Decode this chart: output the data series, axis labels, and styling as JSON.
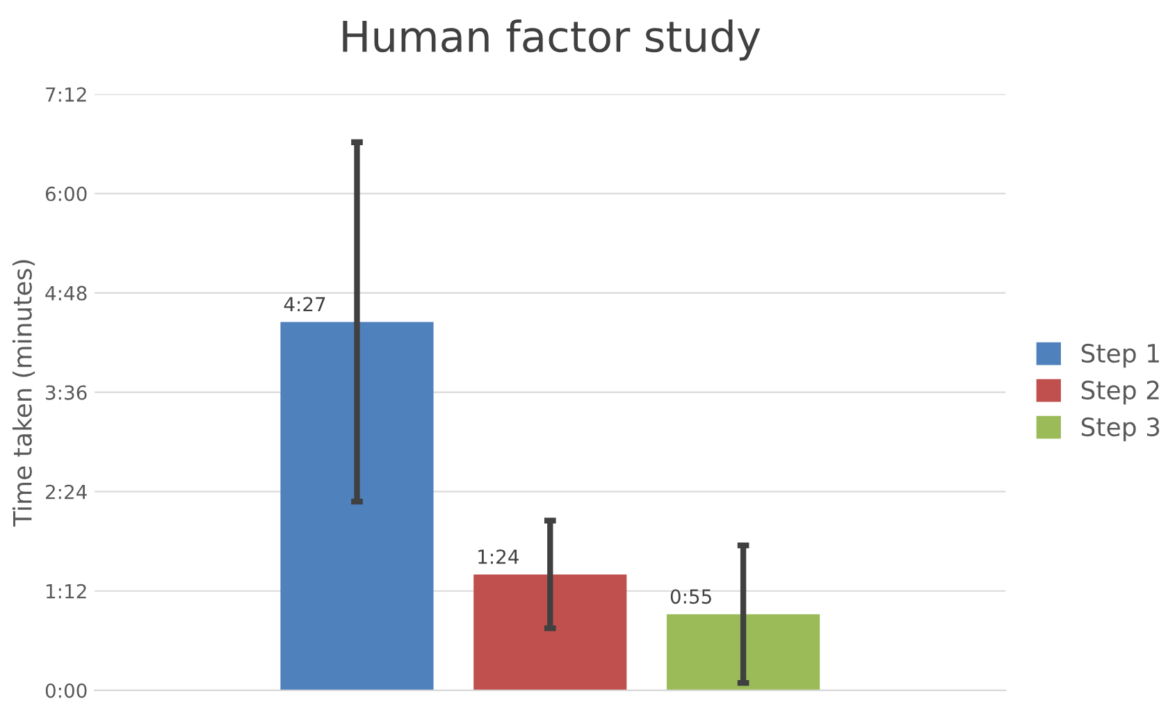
{
  "chart_data": {
    "type": "bar",
    "title": "Human factor study",
    "ylabel": "Time taken (minutes)",
    "categories": [
      null
    ],
    "series": [
      {
        "name": "Step 1",
        "color": "#4f81bd",
        "values": [
          4.45
        ],
        "errors": [
          2.17
        ],
        "value_labels": [
          "4:27"
        ]
      },
      {
        "name": "Step 2",
        "color": "#c0504d",
        "values": [
          1.4
        ],
        "errors": [
          0.65
        ],
        "value_labels": [
          "1:24"
        ]
      },
      {
        "name": "Step 3",
        "color": "#9bbb59",
        "values": [
          0.92
        ],
        "errors": [
          0.83
        ],
        "value_labels": [
          "0:55"
        ]
      }
    ],
    "ylim": [
      0,
      7.2
    ],
    "yticks": [
      {
        "value": 0,
        "label": "0:00"
      },
      {
        "value": 1.2,
        "label": "1:12"
      },
      {
        "value": 2.4,
        "label": "2:24"
      },
      {
        "value": 3.6,
        "label": "3:36"
      },
      {
        "value": 4.8,
        "label": "4:48"
      },
      {
        "value": 6.0,
        "label": "6:00"
      },
      {
        "value": 7.2,
        "label": "7:12"
      }
    ],
    "grid": "y",
    "legend": "right"
  }
}
